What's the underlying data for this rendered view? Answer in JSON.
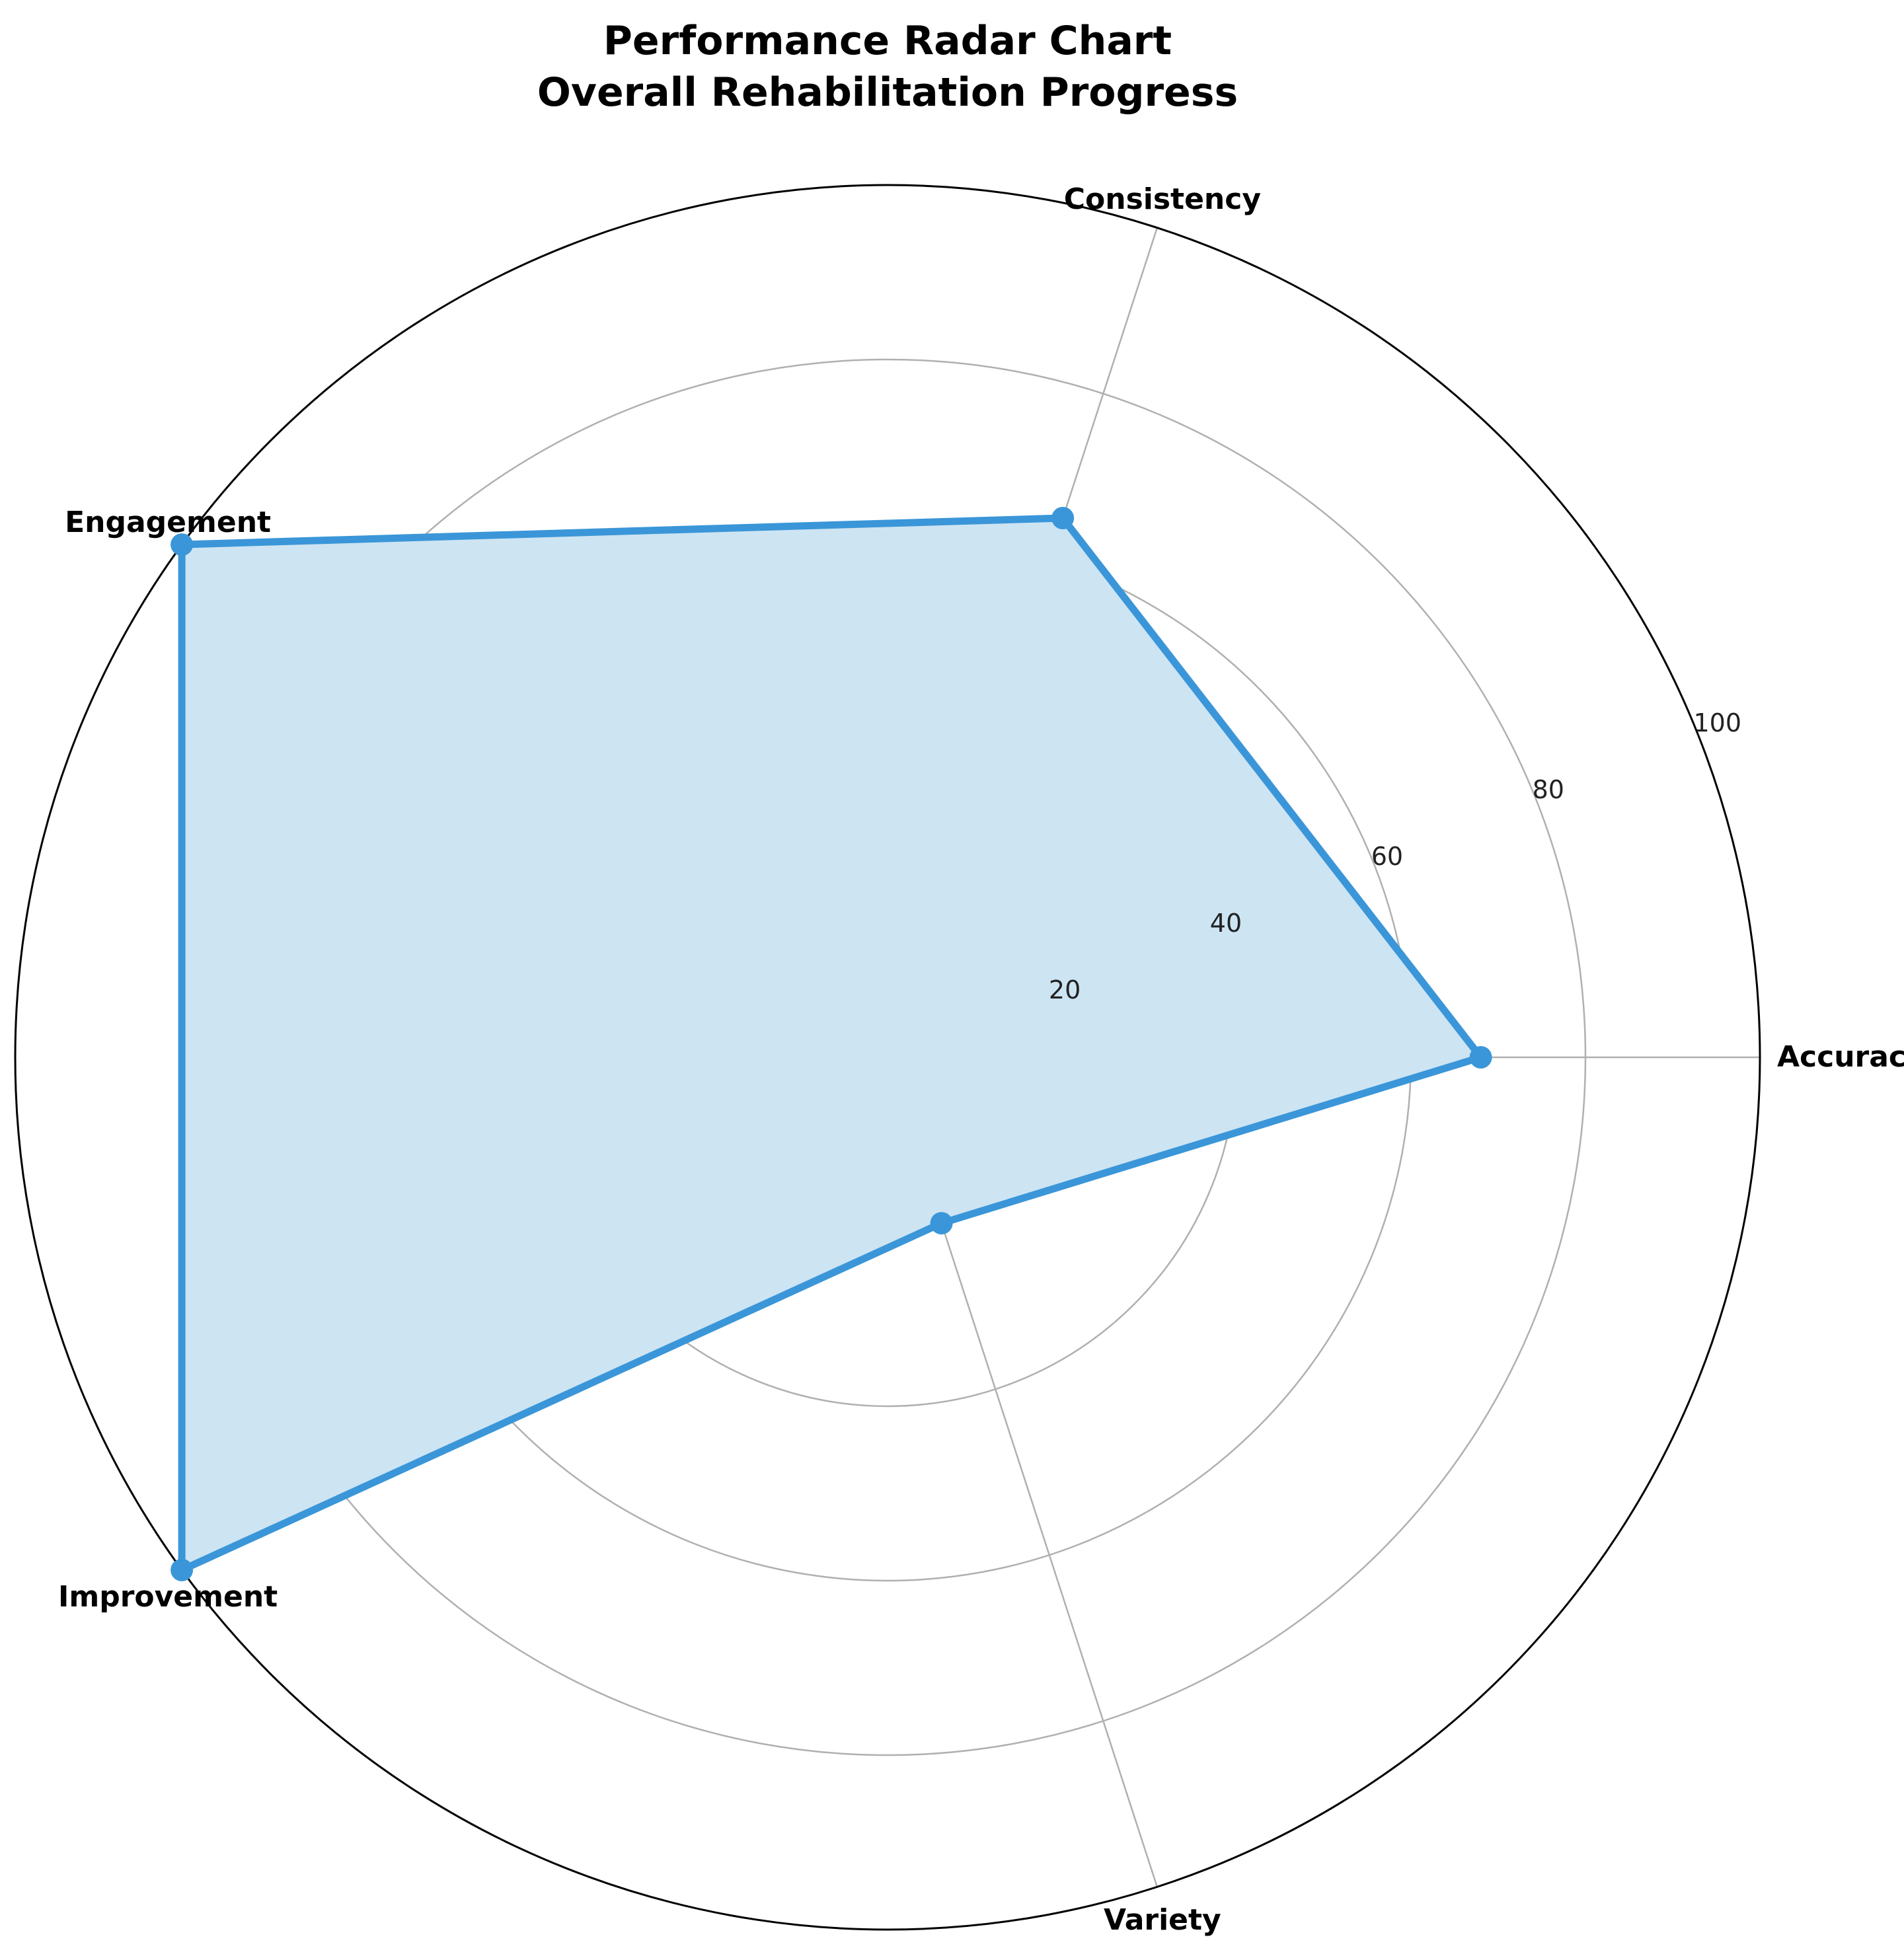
{
  "chart_data": {
    "type": "radar",
    "title": "Performance Radar Chart",
    "subtitle": "Overall Rehabilitation Progress",
    "categories": [
      "Accuracy",
      "Consistency",
      "Engagement",
      "Improvement",
      "Variety"
    ],
    "series": [
      {
        "values": [
          68,
          65,
          100,
          100,
          20
        ],
        "color": "#3a96d8",
        "fill": "#cde4f3"
      }
    ],
    "radial_ticks": [
      20,
      40,
      60,
      80,
      100
    ],
    "rlim": [
      0,
      100
    ],
    "grid": true,
    "outer_ring_color": "#000000",
    "grid_color": "#b0b0b0"
  }
}
